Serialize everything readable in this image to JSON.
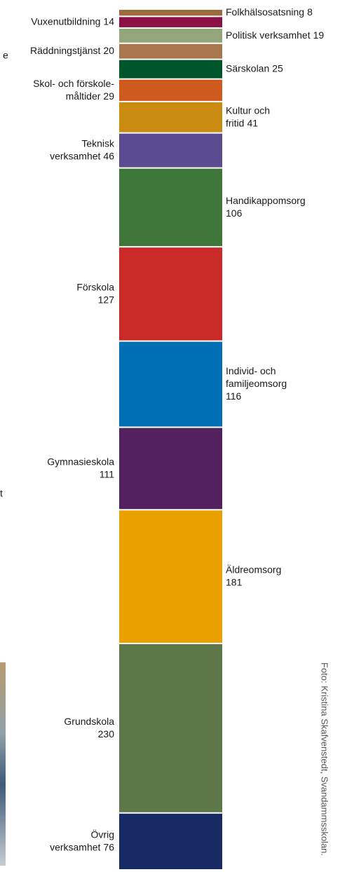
{
  "chart_data": {
    "type": "stacked-column",
    "categories": [
      [
        "Folkhälsosatsning"
      ],
      [
        "Vuxenutbildning"
      ],
      [
        "Politisk verksamhet"
      ],
      [
        "Räddningstjänst"
      ],
      [
        "Särskolan"
      ],
      [
        "Skol- och förskole-",
        "måltider"
      ],
      [
        "Kultur och",
        "fritid"
      ],
      [
        "Teknisk",
        "verksamhet"
      ],
      [
        "Handikappomsorg"
      ],
      [
        "Förskola"
      ],
      [
        "Individ- och",
        "familjeomsorg"
      ],
      [
        "Gymnasieskola"
      ],
      [
        "Äldreomsorg"
      ],
      [
        "Grundskola"
      ],
      [
        "Övrig",
        "verksamhet"
      ]
    ],
    "values": [
      8,
      14,
      19,
      20,
      25,
      29,
      41,
      46,
      106,
      127,
      116,
      111,
      181,
      230,
      76
    ],
    "colors": [
      "#9c6a3c",
      "#8c1045",
      "#94a57c",
      "#a9774e",
      "#00562a",
      "#cf5a1e",
      "#c98b10",
      "#5b4b90",
      "#3f763a",
      "#c92a27",
      "#006fb4",
      "#52215e",
      "#eaa100",
      "#5e7748",
      "#182a63"
    ]
  },
  "edge_fragments": [
    "e",
    "t"
  ],
  "photo_credit": "Foto: Kristina Skafvenstedt, Svandammsskolan."
}
